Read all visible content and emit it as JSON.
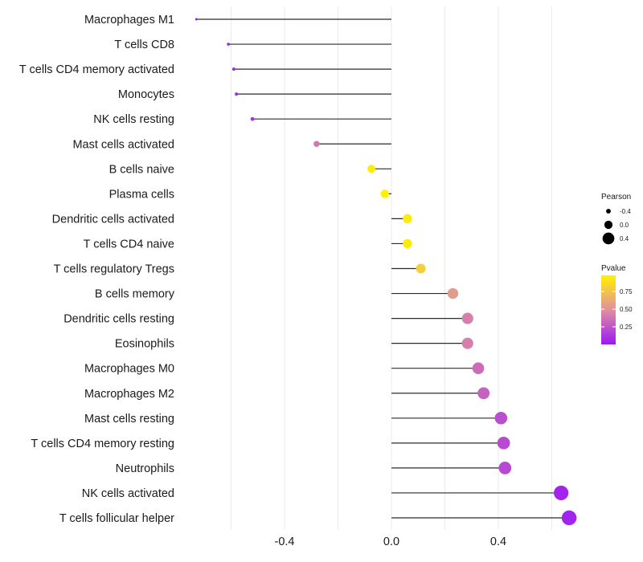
{
  "chart_data": {
    "type": "lollipop",
    "title": "",
    "xlabel": "",
    "ylabel": "",
    "xlim": [
      -0.8,
      0.7
    ],
    "x_ticks": [
      {
        "value": -0.4,
        "label": "-0.4"
      },
      {
        "value": 0.0,
        "label": "0.0"
      },
      {
        "value": 0.4,
        "label": "0.4"
      }
    ],
    "categories": [
      "Macrophages M1",
      "T cells CD8",
      "T cells CD4 memory activated",
      "Monocytes",
      "NK cells resting",
      "Mast cells activated",
      "B cells naive",
      "Plasma cells",
      "Dendritic cells activated",
      "T cells CD4 naive",
      "T cells regulatory  Tregs",
      "B cells memory",
      "Dendritic cells resting",
      "Eosinophils",
      "Macrophages M0",
      "Macrophages M2",
      "Mast cells resting",
      "T cells CD4 memory resting",
      "Neutrophils",
      "NK cells activated",
      "T cells follicular helper"
    ],
    "values": [
      -0.73,
      -0.61,
      -0.59,
      -0.58,
      -0.52,
      -0.28,
      -0.075,
      -0.025,
      0.06,
      0.06,
      0.11,
      0.23,
      0.285,
      0.285,
      0.325,
      0.345,
      0.41,
      0.42,
      0.425,
      0.635,
      0.665
    ],
    "pvalues": [
      0.02,
      0.04,
      0.06,
      0.07,
      0.1,
      0.4,
      0.95,
      0.98,
      0.95,
      0.95,
      0.8,
      0.55,
      0.42,
      0.42,
      0.34,
      0.3,
      0.22,
      0.2,
      0.2,
      0.05,
      0.05
    ],
    "legend": {
      "size_title": "Pearson",
      "size_entries": [
        {
          "label": "-0.4",
          "value": -0.4
        },
        {
          "label": "0.0",
          "value": 0.0
        },
        {
          "label": "0.4",
          "value": 0.4
        }
      ],
      "color_title": "Pvalue",
      "color_ticks": [
        {
          "label": "0.75",
          "value": 0.75
        },
        {
          "label": "0.50",
          "value": 0.5
        },
        {
          "label": "0.25",
          "value": 0.25
        }
      ],
      "color_range": [
        0.0,
        0.98
      ],
      "color_low": "#9a19f5",
      "color_high": "#fff200",
      "placement": "right"
    },
    "grid": true
  }
}
